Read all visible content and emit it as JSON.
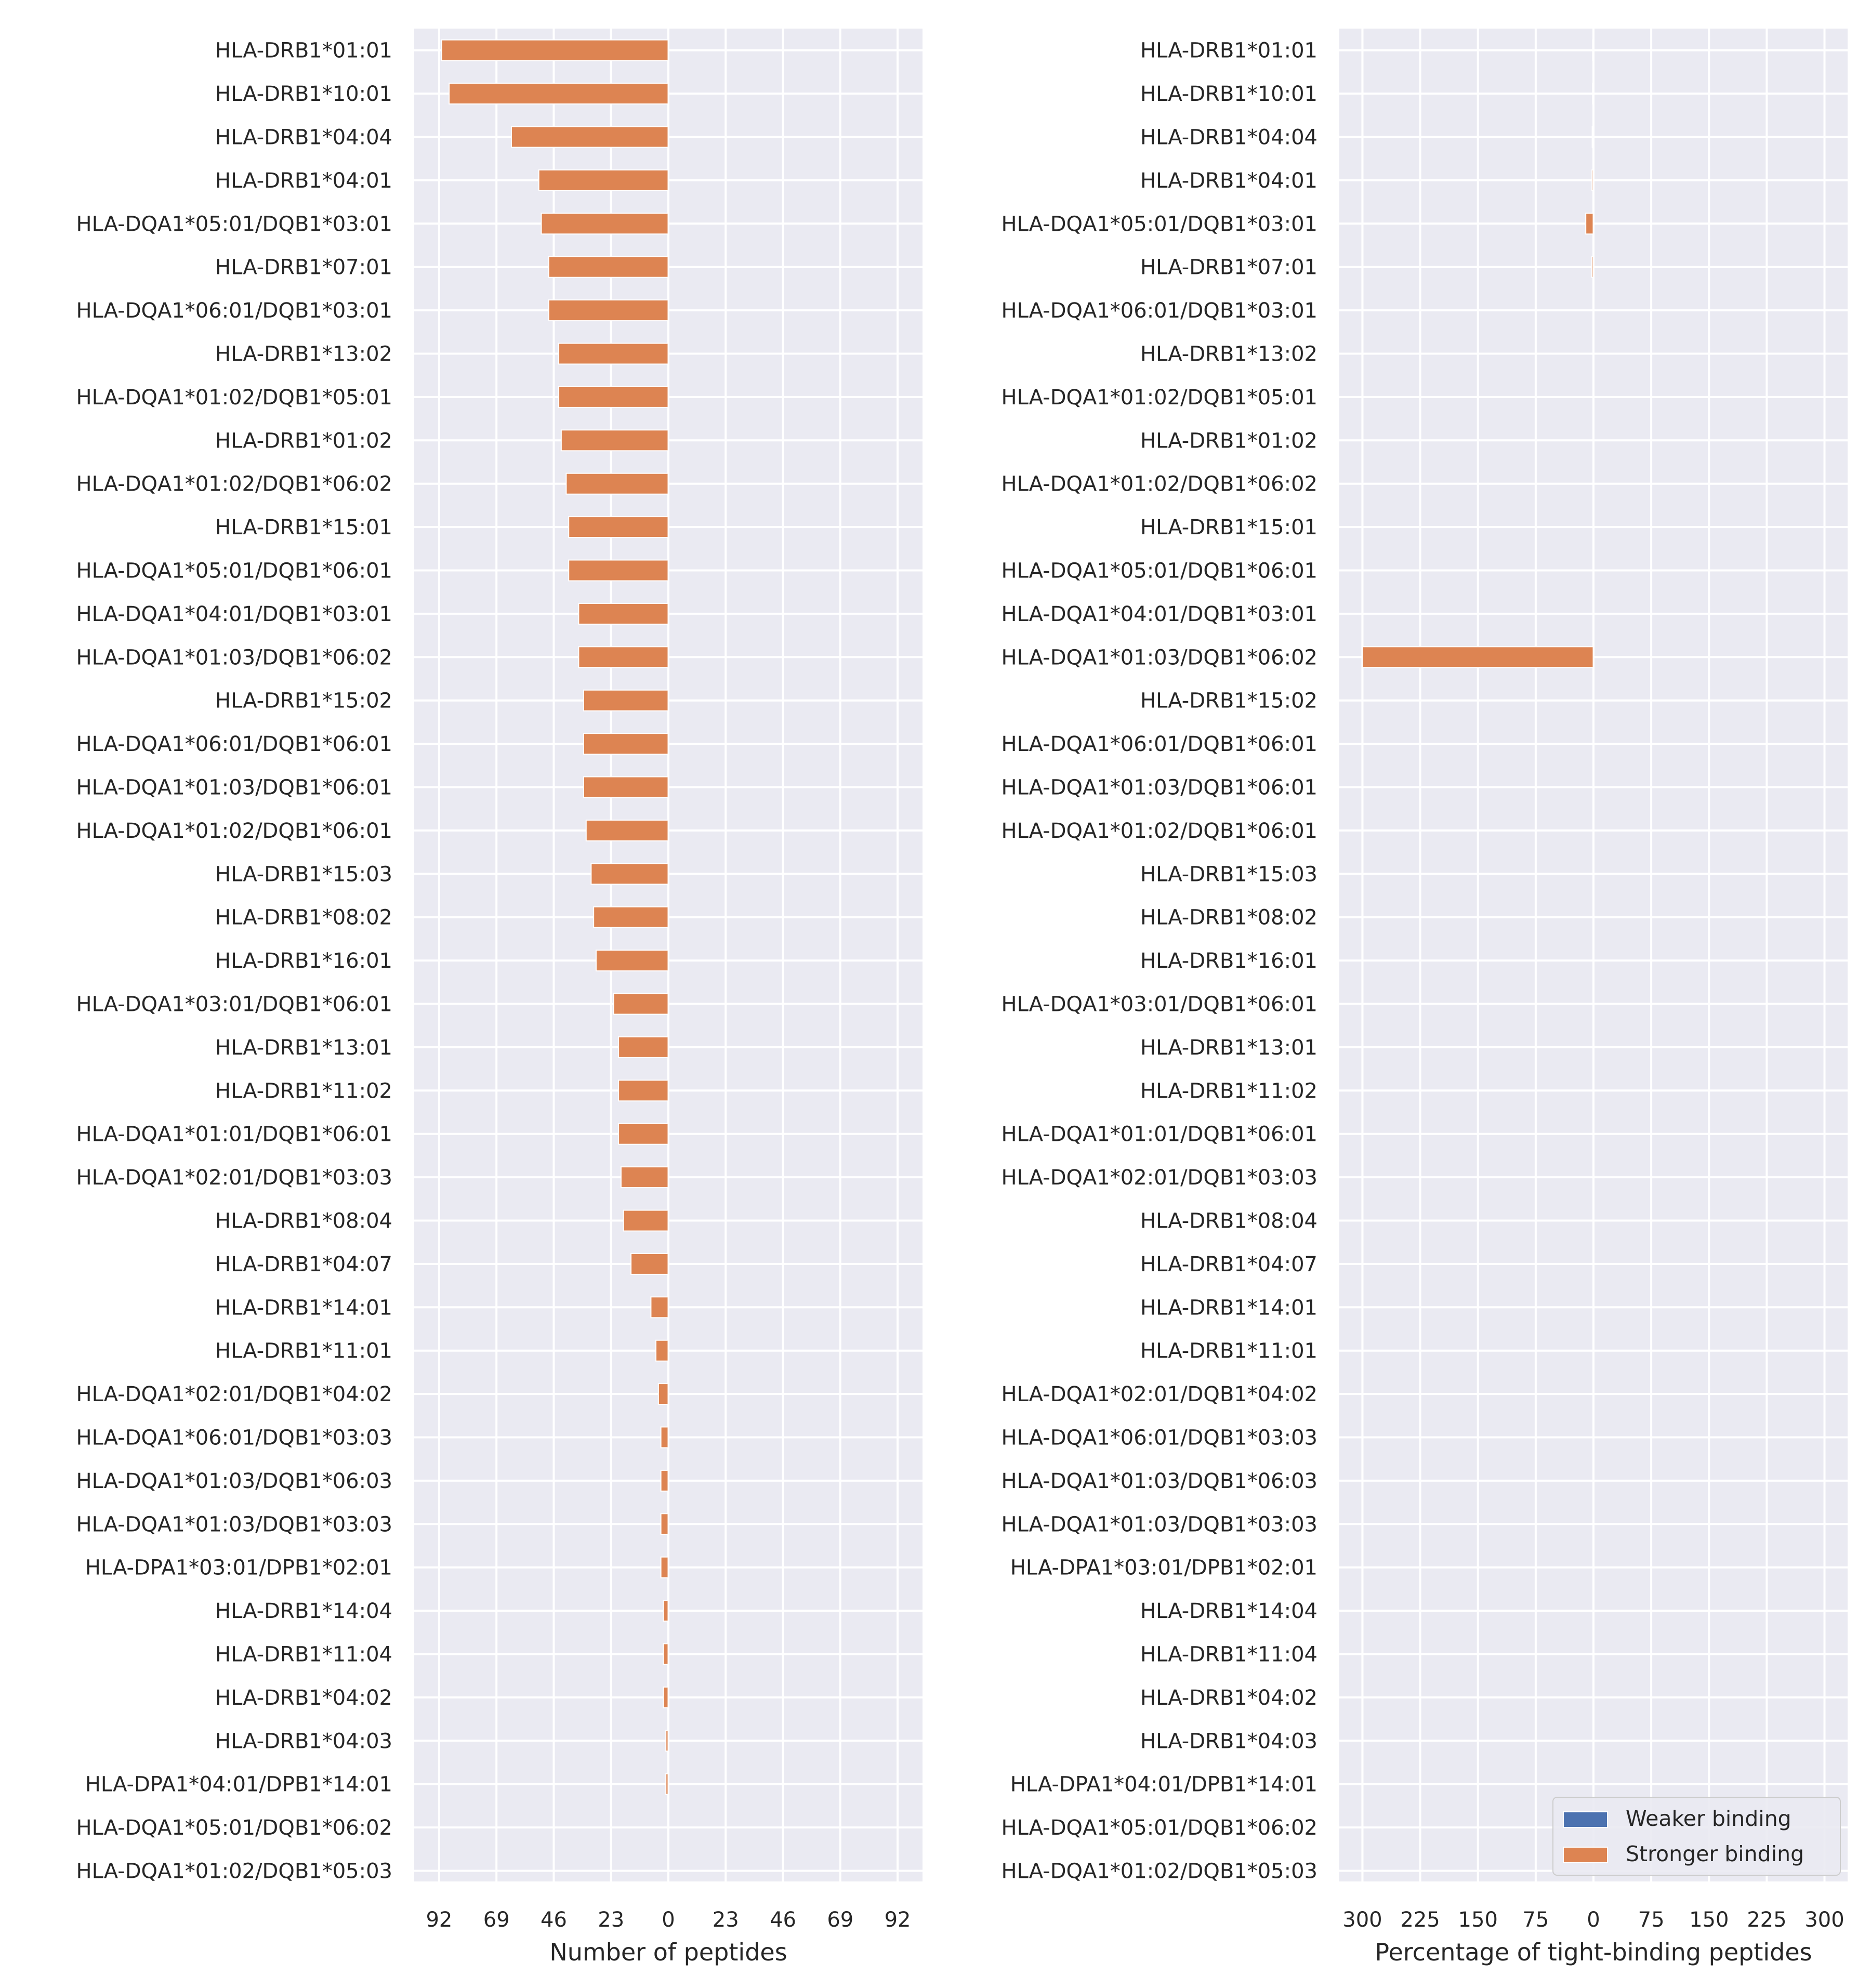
{
  "chart_data": [
    {
      "type": "bar",
      "orientation": "horizontal",
      "xlabel": "Number of peptides",
      "xticks": [
        -92,
        -69,
        -46,
        -23,
        0,
        23,
        46,
        69,
        92
      ],
      "xtick_labels": [
        "92",
        "69",
        "46",
        "23",
        "0",
        "23",
        "46",
        "69",
        "92"
      ],
      "xlim": [
        -102,
        102
      ],
      "grid": true,
      "categories": [
        "HLA-DRB1*01:01",
        "HLA-DRB1*10:01",
        "HLA-DRB1*04:04",
        "HLA-DRB1*04:01",
        "HLA-DQA1*05:01/DQB1*03:01",
        "HLA-DRB1*07:01",
        "HLA-DQA1*06:01/DQB1*03:01",
        "HLA-DRB1*13:02",
        "HLA-DQA1*01:02/DQB1*05:01",
        "HLA-DRB1*01:02",
        "HLA-DQA1*01:02/DQB1*06:02",
        "HLA-DRB1*15:01",
        "HLA-DQA1*05:01/DQB1*06:01",
        "HLA-DQA1*04:01/DQB1*03:01",
        "HLA-DQA1*01:03/DQB1*06:02",
        "HLA-DRB1*15:02",
        "HLA-DQA1*06:01/DQB1*06:01",
        "HLA-DQA1*01:03/DQB1*06:01",
        "HLA-DQA1*01:02/DQB1*06:01",
        "HLA-DRB1*15:03",
        "HLA-DRB1*08:02",
        "HLA-DRB1*16:01",
        "HLA-DQA1*03:01/DQB1*06:01",
        "HLA-DRB1*13:01",
        "HLA-DRB1*11:02",
        "HLA-DQA1*01:01/DQB1*06:01",
        "HLA-DQA1*02:01/DQB1*03:03",
        "HLA-DRB1*08:04",
        "HLA-DRB1*04:07",
        "HLA-DRB1*14:01",
        "HLA-DRB1*11:01",
        "HLA-DQA1*02:01/DQB1*04:02",
        "HLA-DQA1*06:01/DQB1*03:03",
        "HLA-DQA1*01:03/DQB1*06:03",
        "HLA-DQA1*01:03/DQB1*03:03",
        "HLA-DPA1*03:01/DPB1*02:01",
        "HLA-DRB1*14:04",
        "HLA-DRB1*11:04",
        "HLA-DRB1*04:02",
        "HLA-DRB1*04:03",
        "HLA-DPA1*04:01/DPB1*14:01",
        "HLA-DQA1*05:01/DQB1*06:02",
        "HLA-DQA1*01:02/DQB1*05:03"
      ],
      "series": [
        {
          "name": "Weaker binding",
          "color": "#4c72b0",
          "values": [
            0,
            0,
            0,
            0,
            0,
            0,
            0,
            0,
            0,
            0,
            0,
            0,
            0,
            0,
            0,
            0,
            0,
            0,
            0,
            0,
            0,
            0,
            0,
            0,
            0,
            0,
            0,
            0,
            0,
            0,
            0,
            0,
            0,
            0,
            0,
            0,
            0,
            0,
            0,
            0,
            0,
            0,
            0
          ]
        },
        {
          "name": "Stronger binding",
          "color": "#dd8452",
          "values": [
            -91,
            -88,
            -63,
            -52,
            -51,
            -48,
            -48,
            -44,
            -44,
            -43,
            -41,
            -40,
            -40,
            -36,
            -36,
            -34,
            -34,
            -34,
            -33,
            -31,
            -30,
            -29,
            -22,
            -20,
            -20,
            -20,
            -19,
            -18,
            -15,
            -7,
            -5,
            -4,
            -3,
            -3,
            -3,
            -3,
            -2,
            -2,
            -2,
            -1,
            -1,
            0,
            0
          ]
        }
      ]
    },
    {
      "type": "bar",
      "orientation": "horizontal",
      "xlabel": "Percentage of tight-binding peptides",
      "xticks": [
        -300,
        -225,
        -150,
        -75,
        0,
        75,
        150,
        225,
        300
      ],
      "xtick_labels": [
        "300",
        "225",
        "150",
        "75",
        "0",
        "75",
        "150",
        "225",
        "300"
      ],
      "xlim": [
        -330,
        330
      ],
      "grid": true,
      "legend": {
        "position": "bottom-right",
        "entries": [
          "Weaker binding",
          "Stronger binding"
        ]
      },
      "categories": [
        "HLA-DRB1*01:01",
        "HLA-DRB1*10:01",
        "HLA-DRB1*04:04",
        "HLA-DRB1*04:01",
        "HLA-DQA1*05:01/DQB1*03:01",
        "HLA-DRB1*07:01",
        "HLA-DQA1*06:01/DQB1*03:01",
        "HLA-DRB1*13:02",
        "HLA-DQA1*01:02/DQB1*05:01",
        "HLA-DRB1*01:02",
        "HLA-DQA1*01:02/DQB1*06:02",
        "HLA-DRB1*15:01",
        "HLA-DQA1*05:01/DQB1*06:01",
        "HLA-DQA1*04:01/DQB1*03:01",
        "HLA-DQA1*01:03/DQB1*06:02",
        "HLA-DRB1*15:02",
        "HLA-DQA1*06:01/DQB1*06:01",
        "HLA-DQA1*01:03/DQB1*06:01",
        "HLA-DQA1*01:02/DQB1*06:01",
        "HLA-DRB1*15:03",
        "HLA-DRB1*08:02",
        "HLA-DRB1*16:01",
        "HLA-DQA1*03:01/DQB1*06:01",
        "HLA-DRB1*13:01",
        "HLA-DRB1*11:02",
        "HLA-DQA1*01:01/DQB1*06:01",
        "HLA-DQA1*02:01/DQB1*03:03",
        "HLA-DRB1*08:04",
        "HLA-DRB1*04:07",
        "HLA-DRB1*14:01",
        "HLA-DRB1*11:01",
        "HLA-DQA1*02:01/DQB1*04:02",
        "HLA-DQA1*06:01/DQB1*03:03",
        "HLA-DQA1*01:03/DQB1*06:03",
        "HLA-DQA1*01:03/DQB1*03:03",
        "HLA-DPA1*03:01/DPB1*02:01",
        "HLA-DRB1*14:04",
        "HLA-DRB1*11:04",
        "HLA-DRB1*04:02",
        "HLA-DRB1*04:03",
        "HLA-DPA1*04:01/DPB1*14:01",
        "HLA-DQA1*05:01/DQB1*06:02",
        "HLA-DQA1*01:02/DQB1*05:03"
      ],
      "series": [
        {
          "name": "Weaker binding",
          "color": "#4c72b0",
          "values": [
            0,
            0,
            0,
            0,
            0,
            0,
            0,
            0,
            0,
            0,
            0,
            0,
            0,
            0,
            0,
            0,
            0,
            0,
            0,
            0,
            0,
            0,
            0,
            0,
            0,
            0,
            0,
            0,
            0,
            0,
            0,
            0,
            0,
            0,
            0,
            0,
            0,
            0,
            0,
            0,
            0,
            0,
            0
          ]
        },
        {
          "name": "Stronger binding",
          "color": "#dd8452",
          "values": [
            -1,
            -1.1,
            -1.6,
            -1.9,
            -10,
            -2.1,
            0,
            0,
            0,
            0,
            0,
            0,
            0,
            0,
            -300,
            0,
            0,
            0,
            0,
            0,
            0,
            0,
            0,
            0,
            0,
            0,
            0,
            0,
            0,
            0,
            0,
            0,
            0,
            0,
            0,
            0,
            0,
            0,
            0,
            0,
            0,
            0,
            0
          ]
        }
      ]
    }
  ]
}
